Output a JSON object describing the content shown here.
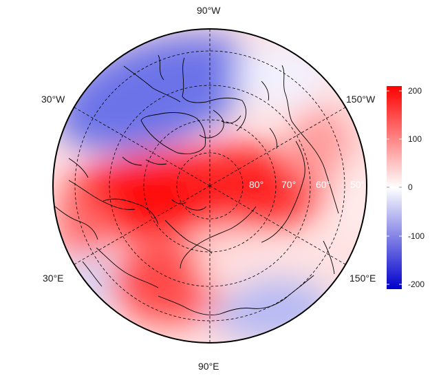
{
  "map": {
    "projection": "north-polar-stereographic",
    "longitude_labels": [
      "90°W",
      "30°W",
      "150°W",
      "30°E",
      "150°E",
      "90°E"
    ],
    "latitude_labels": [
      "80°",
      "70°",
      "60°",
      "50°"
    ],
    "field_description": "anomaly field",
    "colors": {
      "negative": "#0000cc",
      "zero": "#ffffff",
      "positive": "#ff0000",
      "coast": "#000000",
      "grid": "#000000"
    }
  },
  "colorbar": {
    "ticks": [
      "200",
      "100",
      "0",
      "-100",
      "-200"
    ],
    "range": [
      -210,
      210
    ]
  }
}
